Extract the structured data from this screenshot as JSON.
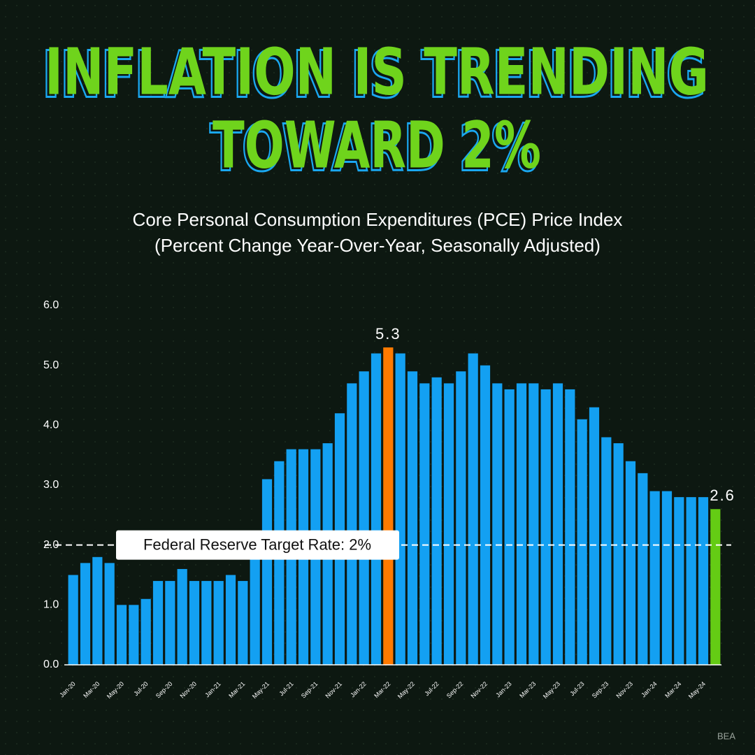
{
  "chart_data": {
    "type": "bar",
    "title": [
      "INFLATION IS TRENDING",
      "TOWARD 2%"
    ],
    "subtitle": [
      "Core Personal Consumption Expenditures (PCE) Price Index",
      "(Percent Change Year-Over-Year, Seasonally Adjusted)"
    ],
    "source": "BEA",
    "categories": [
      "Jan-20",
      null,
      "Mar-20",
      null,
      "May-20",
      null,
      "Jul-20",
      null,
      "Sep-20",
      null,
      "Nov-20",
      null,
      "Jan-21",
      null,
      "Mar-21",
      null,
      "May-21",
      null,
      "Jul-21",
      null,
      "Sep-21",
      null,
      "Nov-21",
      null,
      "Jan-22",
      null,
      "Mar-22",
      null,
      "May-22",
      null,
      "Jul-22",
      null,
      "Sep-22",
      null,
      "Nov-22",
      null,
      "Jan-23",
      null,
      "Mar-23",
      null,
      "May-23",
      null,
      "Jul-23",
      null,
      "Sep-23",
      null,
      "Nov-23",
      null,
      "Jan-24",
      null,
      "Mar-24",
      null,
      "May-24",
      null
    ],
    "values": [
      1.5,
      1.7,
      1.8,
      1.7,
      1.0,
      1.0,
      1.1,
      1.4,
      1.4,
      1.6,
      1.4,
      1.4,
      1.4,
      1.5,
      1.4,
      2.0,
      3.1,
      3.4,
      3.6,
      3.6,
      3.6,
      3.7,
      4.2,
      4.7,
      4.9,
      5.2,
      5.3,
      5.2,
      4.9,
      4.7,
      4.8,
      4.7,
      4.9,
      5.2,
      5.0,
      4.7,
      4.6,
      4.7,
      4.7,
      4.6,
      4.7,
      4.6,
      4.1,
      4.3,
      3.8,
      3.7,
      3.4,
      3.2,
      2.9,
      2.9,
      2.8,
      2.8,
      2.8,
      2.6
    ],
    "value_labels": [
      null,
      null,
      null,
      null,
      null,
      null,
      null,
      null,
      null,
      null,
      null,
      null,
      null,
      null,
      null,
      null,
      null,
      null,
      null,
      null,
      null,
      null,
      null,
      null,
      null,
      null,
      "5.3",
      null,
      null,
      null,
      null,
      null,
      null,
      null,
      null,
      null,
      null,
      null,
      null,
      null,
      null,
      null,
      null,
      null,
      null,
      null,
      null,
      null,
      null,
      null,
      null,
      null,
      null,
      "2.6"
    ],
    "colors": [
      "#13a0f2",
      "#13a0f2",
      "#13a0f2",
      "#13a0f2",
      "#13a0f2",
      "#13a0f2",
      "#13a0f2",
      "#13a0f2",
      "#13a0f2",
      "#13a0f2",
      "#13a0f2",
      "#13a0f2",
      "#13a0f2",
      "#13a0f2",
      "#13a0f2",
      "#13a0f2",
      "#13a0f2",
      "#13a0f2",
      "#13a0f2",
      "#13a0f2",
      "#13a0f2",
      "#13a0f2",
      "#13a0f2",
      "#13a0f2",
      "#13a0f2",
      "#13a0f2",
      "#ff7a00",
      "#13a0f2",
      "#13a0f2",
      "#13a0f2",
      "#13a0f2",
      "#13a0f2",
      "#13a0f2",
      "#13a0f2",
      "#13a0f2",
      "#13a0f2",
      "#13a0f2",
      "#13a0f2",
      "#13a0f2",
      "#13a0f2",
      "#13a0f2",
      "#13a0f2",
      "#13a0f2",
      "#13a0f2",
      "#13a0f2",
      "#13a0f2",
      "#13a0f2",
      "#13a0f2",
      "#13a0f2",
      "#13a0f2",
      "#13a0f2",
      "#13a0f2",
      "#13a0f2",
      "#64cc14"
    ],
    "reference_line": {
      "value": 2,
      "label": "Federal Reserve Target Rate: 2%"
    },
    "ylim": [
      0,
      6
    ],
    "yticks": [
      {
        "value": 0,
        "label": "0.0"
      },
      {
        "value": 1,
        "label": "1.0"
      },
      {
        "value": 2,
        "label": "2.0"
      },
      {
        "value": 3,
        "label": "3.0"
      },
      {
        "value": 4,
        "label": "4.0"
      },
      {
        "value": 5,
        "label": "5.0"
      },
      {
        "value": 6,
        "label": "6.0"
      }
    ],
    "grid": false
  }
}
